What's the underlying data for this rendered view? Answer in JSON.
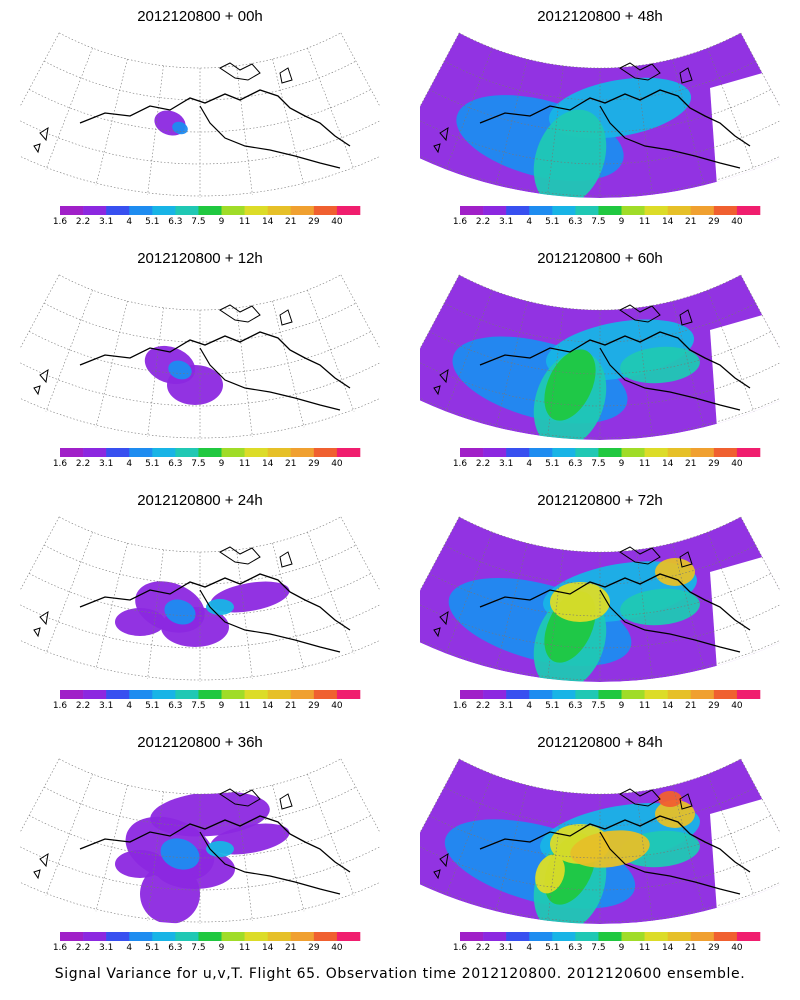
{
  "panels": [
    {
      "title": "2012120800 + 00h"
    },
    {
      "title": "2012120800 + 48h"
    },
    {
      "title": "2012120800 + 12h"
    },
    {
      "title": "2012120800 + 60h"
    },
    {
      "title": "2012120800 + 24h"
    },
    {
      "title": "2012120800 + 72h"
    },
    {
      "title": "2012120800 + 36h"
    },
    {
      "title": "2012120800 + 84h"
    }
  ],
  "colorbar": {
    "labels": [
      "1.6",
      "2.2",
      "3.1",
      "4",
      "5.1",
      "6.3",
      "7.5",
      "9",
      "11",
      "14",
      "21",
      "29",
      "40"
    ],
    "colors": [
      "#a020c8",
      "#8c28e0",
      "#3850f0",
      "#1e8cf0",
      "#18b4e6",
      "#20c8b4",
      "#20c840",
      "#a0dc28",
      "#dcdc28",
      "#e6c028",
      "#f0a030",
      "#f06030",
      "#f01e6e"
    ]
  },
  "caption": "Signal Variance for u,v,T. Flight 65. Observation time 2012120800. 2012120600 ensemble."
}
